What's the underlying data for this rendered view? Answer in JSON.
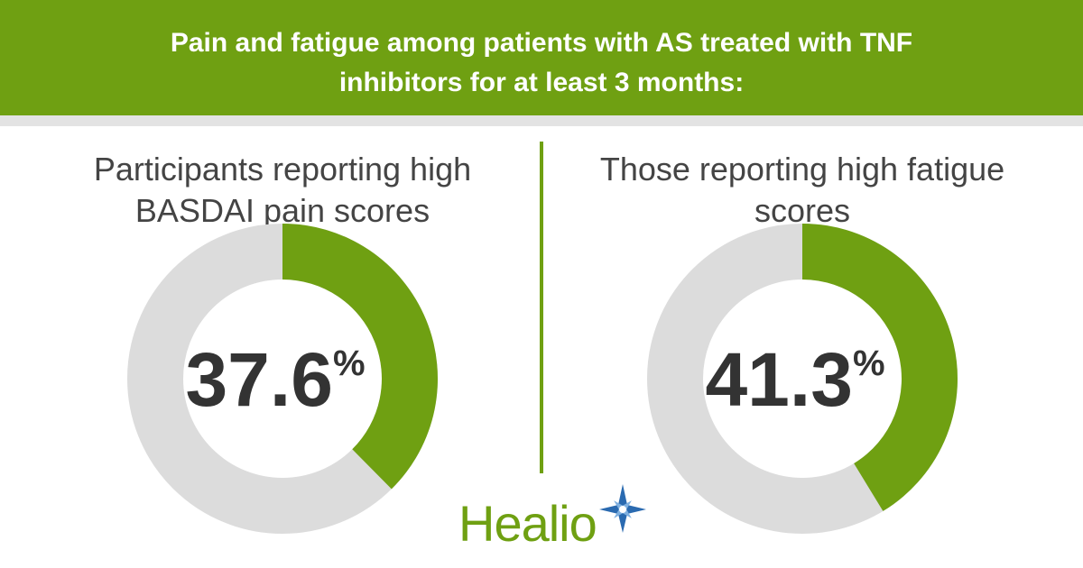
{
  "header": {
    "title": "Pain and fatigue among patients with AS treated with TNF inhibitors for at least 3 months:"
  },
  "logo": "Healio",
  "chart_data": [
    {
      "type": "donut",
      "title": "Participants reporting high BASDAI pain scores",
      "values": [
        37.6
      ],
      "unit": "%",
      "color": "#6fa012",
      "track_color": "#dcdcdc"
    },
    {
      "type": "donut",
      "title": "Those reporting high fatigue scores",
      "values": [
        41.3
      ],
      "unit": "%",
      "color": "#6fa012",
      "track_color": "#dcdcdc"
    }
  ]
}
